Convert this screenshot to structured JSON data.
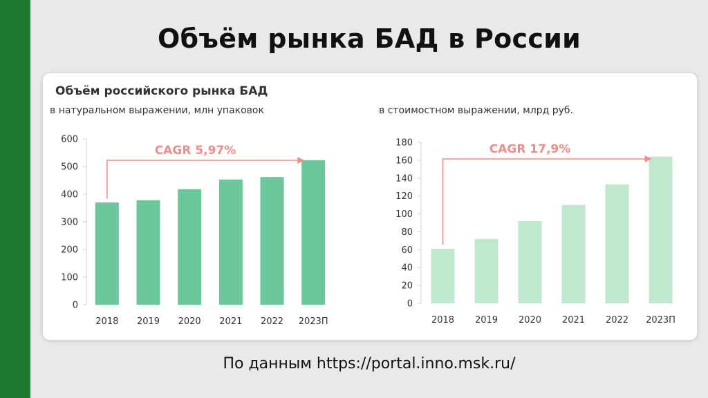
{
  "slide": {
    "title": "Объём рынка БАД в России",
    "source": "По данным https://portal.inno.msk.ru/",
    "accent_color": "#1e7a2e"
  },
  "card": {
    "title": "Объём российского рынка БАД"
  },
  "chart_data": [
    {
      "type": "bar",
      "subtitle": "в натуральном выражении, млн упаковок",
      "categories": [
        "2018",
        "2019",
        "2020",
        "2021",
        "2022",
        "2023П"
      ],
      "values": [
        370,
        378,
        418,
        453,
        462,
        523
      ],
      "ylim": [
        0,
        600
      ],
      "yticks": [
        0,
        100,
        200,
        300,
        400,
        500,
        600
      ],
      "annotation": "CAGR 5,97%",
      "bar_color": "#6cc79b",
      "arrow_color": "#f28b8b"
    },
    {
      "type": "bar",
      "subtitle": "в стоимостном выражении, млрд руб.",
      "categories": [
        "2018",
        "2019",
        "2020",
        "2021",
        "2022",
        "2023П"
      ],
      "values": [
        61,
        72,
        92,
        110,
        133,
        164
      ],
      "ylim": [
        0,
        180
      ],
      "yticks": [
        0,
        20,
        40,
        60,
        80,
        100,
        120,
        140,
        160,
        180
      ],
      "annotation": "CAGR 17,9%",
      "bar_color": "#bfe8cf",
      "arrow_color": "#f28b8b"
    }
  ]
}
